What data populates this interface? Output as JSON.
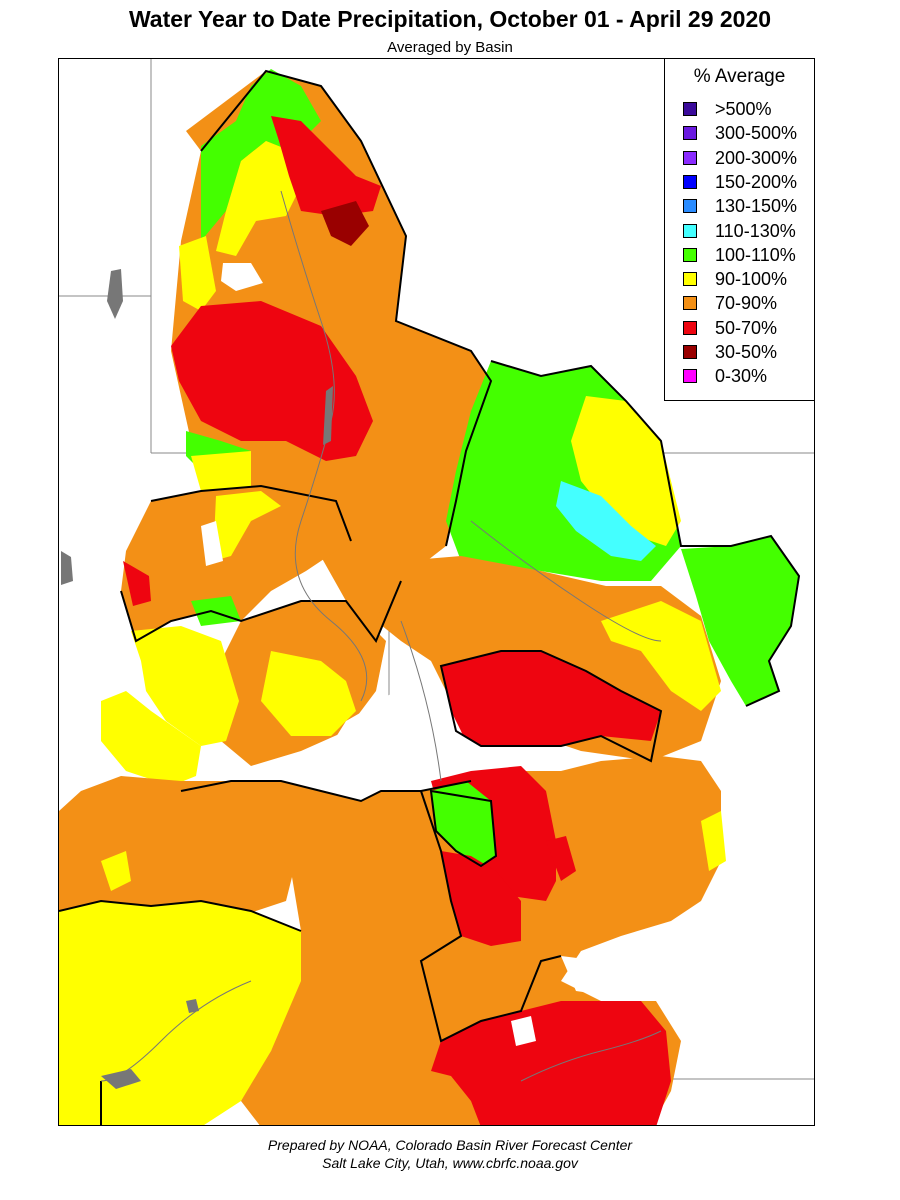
{
  "title": "Water Year to Date Precipitation, October 01  - April 29 2020",
  "subtitle": "Averaged by Basin",
  "legend": {
    "title": "% Average",
    "items": [
      {
        "label": ">500%",
        "color": "#3a0a9a"
      },
      {
        "label": "300-500%",
        "color": "#6a1ae0"
      },
      {
        "label": "200-300%",
        "color": "#8a2bff"
      },
      {
        "label": "150-200%",
        "color": "#0000ff"
      },
      {
        "label": "130-150%",
        "color": "#2a8cff"
      },
      {
        "label": "110-130%",
        "color": "#44ffff"
      },
      {
        "label": "100-110%",
        "color": "#44ff00"
      },
      {
        "label": "90-100%",
        "color": "#ffff00"
      },
      {
        "label": "70-90%",
        "color": "#f39016"
      },
      {
        "label": "50-70%",
        "color": "#ee0510"
      },
      {
        "label": "30-50%",
        "color": "#990000"
      },
      {
        "label": "0-30%",
        "color": "#ff00ff"
      }
    ]
  },
  "credit": {
    "line1": "Prepared by NOAA, Colorado Basin River Forecast Center",
    "line2": "Salt Lake City, Utah, www.cbrfc.noaa.gov"
  }
}
